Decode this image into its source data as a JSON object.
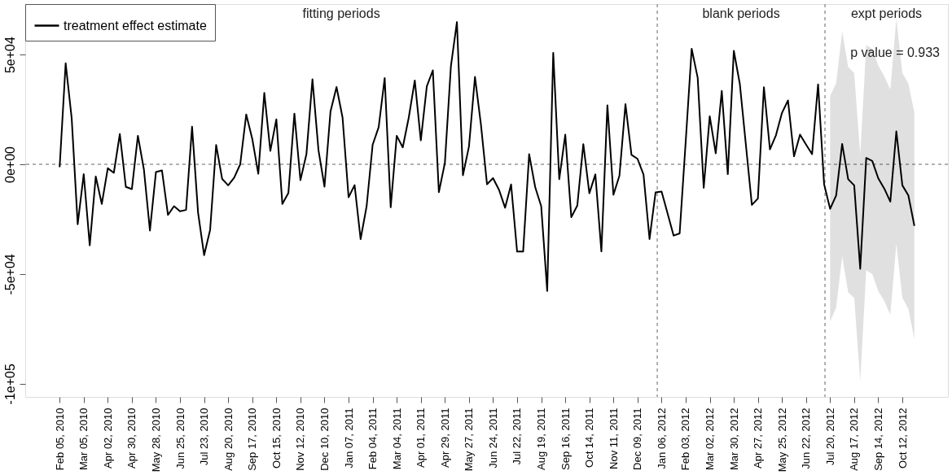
{
  "chart_data": {
    "type": "line",
    "x": [
      "2010-02-05",
      "2010-02-12",
      "2010-02-19",
      "2010-02-26",
      "2010-03-05",
      "2010-03-12",
      "2010-03-19",
      "2010-03-26",
      "2010-04-02",
      "2010-04-09",
      "2010-04-16",
      "2010-04-23",
      "2010-04-30",
      "2010-05-07",
      "2010-05-14",
      "2010-05-21",
      "2010-05-28",
      "2010-06-04",
      "2010-06-11",
      "2010-06-18",
      "2010-06-25",
      "2010-07-02",
      "2010-07-09",
      "2010-07-16",
      "2010-07-23",
      "2010-07-30",
      "2010-08-06",
      "2010-08-13",
      "2010-08-20",
      "2010-08-27",
      "2010-09-03",
      "2010-09-10",
      "2010-09-17",
      "2010-09-24",
      "2010-10-01",
      "2010-10-08",
      "2010-10-15",
      "2010-10-22",
      "2010-10-29",
      "2010-11-05",
      "2010-11-12",
      "2010-11-19",
      "2010-11-26",
      "2010-12-03",
      "2010-12-10",
      "2010-12-17",
      "2010-12-24",
      "2010-12-31",
      "2011-01-07",
      "2011-01-14",
      "2011-01-21",
      "2011-01-28",
      "2011-02-04",
      "2011-02-11",
      "2011-02-18",
      "2011-02-25",
      "2011-03-04",
      "2011-03-11",
      "2011-03-18",
      "2011-03-25",
      "2011-04-01",
      "2011-04-08",
      "2011-04-15",
      "2011-04-22",
      "2011-04-29",
      "2011-05-06",
      "2011-05-13",
      "2011-05-20",
      "2011-05-27",
      "2011-06-03",
      "2011-06-10",
      "2011-06-17",
      "2011-06-24",
      "2011-07-01",
      "2011-07-08",
      "2011-07-15",
      "2011-07-22",
      "2011-07-29",
      "2011-08-05",
      "2011-08-12",
      "2011-08-19",
      "2011-08-26",
      "2011-09-02",
      "2011-09-09",
      "2011-09-16",
      "2011-09-23",
      "2011-09-30",
      "2011-10-07",
      "2011-10-14",
      "2011-10-21",
      "2011-10-28",
      "2011-11-04",
      "2011-11-11",
      "2011-11-18",
      "2011-11-25",
      "2011-12-02",
      "2011-12-09",
      "2011-12-16",
      "2011-12-23",
      "2011-12-30",
      "2012-01-06",
      "2012-01-13",
      "2012-01-20",
      "2012-01-27",
      "2012-02-03",
      "2012-02-10",
      "2012-02-17",
      "2012-02-24",
      "2012-03-02",
      "2012-03-09",
      "2012-03-16",
      "2012-03-23",
      "2012-03-30",
      "2012-04-06",
      "2012-04-13",
      "2012-04-20",
      "2012-04-27",
      "2012-05-04",
      "2012-05-11",
      "2012-05-18",
      "2012-05-25",
      "2012-06-01",
      "2012-06-08",
      "2012-06-15",
      "2012-06-22",
      "2012-06-29",
      "2012-07-06",
      "2012-07-13",
      "2012-07-20",
      "2012-07-27",
      "2012-08-03",
      "2012-08-10",
      "2012-08-17",
      "2012-08-24",
      "2012-08-31",
      "2012-09-07",
      "2012-09-14",
      "2012-09-21",
      "2012-09-28",
      "2012-10-05",
      "2012-10-12",
      "2012-10-19",
      "2012-10-26"
    ],
    "series": [
      {
        "name": "treatment effect estimate",
        "color": "#000000",
        "values": [
          -1300,
          46000,
          21000,
          -27300,
          -4500,
          -36900,
          -5600,
          -18100,
          -1800,
          -3900,
          13800,
          -10300,
          -11300,
          13000,
          -2400,
          -30200,
          -3500,
          -2800,
          -23100,
          -19100,
          -21400,
          -20800,
          17100,
          -22100,
          -41400,
          -29900,
          8800,
          -6700,
          -9600,
          -6100,
          0,
          22700,
          11600,
          -4300,
          32500,
          6100,
          20500,
          -18100,
          -13100,
          23100,
          -7200,
          4600,
          38700,
          6400,
          -10200,
          24100,
          35200,
          21300,
          -15000,
          -9500,
          -34100,
          -19100,
          8900,
          16900,
          39300,
          -19600,
          13000,
          7700,
          21300,
          38200,
          10900,
          35500,
          42800,
          -12700,
          600,
          44700,
          64800,
          -5000,
          8100,
          39800,
          17800,
          -9100,
          -6300,
          -11700,
          -19800,
          -9200,
          -39800,
          -39800,
          4600,
          -10400,
          -19100,
          -57700,
          50800,
          -6800,
          13500,
          -24100,
          -18800,
          9200,
          -13200,
          -4600,
          -39700,
          26900,
          -13900,
          -5200,
          27400,
          4300,
          2500,
          -4700,
          -34100,
          -12800,
          -12400,
          -22400,
          -32500,
          -31500,
          10000,
          52600,
          39400,
          -10700,
          21900,
          5000,
          33400,
          -4500,
          51700,
          36600,
          9000,
          -18500,
          -15600,
          35100,
          6800,
          13200,
          23400,
          29100,
          3600,
          13500,
          9000,
          4600,
          36400,
          -9100,
          -20300,
          -14200,
          9300,
          -6800,
          -9600,
          -47600,
          2900,
          1500,
          -6400,
          -11100,
          -17000,
          15000,
          -9600,
          -14200,
          -28100
        ],
        "lower": [
          null,
          null,
          null,
          null,
          null,
          null,
          null,
          null,
          null,
          null,
          null,
          null,
          null,
          null,
          null,
          null,
          null,
          null,
          null,
          null,
          null,
          null,
          null,
          null,
          null,
          null,
          null,
          null,
          null,
          null,
          null,
          null,
          null,
          null,
          null,
          null,
          null,
          null,
          null,
          null,
          null,
          null,
          null,
          null,
          null,
          null,
          null,
          null,
          null,
          null,
          null,
          null,
          null,
          null,
          null,
          null,
          null,
          null,
          null,
          null,
          null,
          null,
          null,
          null,
          null,
          null,
          null,
          null,
          null,
          null,
          null,
          null,
          null,
          null,
          null,
          null,
          null,
          null,
          null,
          null,
          null,
          null,
          null,
          null,
          null,
          null,
          null,
          null,
          null,
          null,
          null,
          null,
          null,
          null,
          null,
          null,
          null,
          null,
          null,
          null,
          null,
          null,
          null,
          null,
          null,
          null,
          null,
          null,
          null,
          null,
          null,
          null,
          null,
          null,
          null,
          null,
          null,
          null,
          null,
          null,
          null,
          null,
          null,
          null,
          null,
          null,
          null,
          null,
          -71700,
          -65300,
          -41900,
          -58400,
          -60900,
          -98900,
          -48300,
          -50000,
          -57800,
          -62300,
          -68700,
          -36100,
          -60900,
          -65900,
          -79700
        ],
        "upper": [
          null,
          null,
          null,
          null,
          null,
          null,
          null,
          null,
          null,
          null,
          null,
          null,
          null,
          null,
          null,
          null,
          null,
          null,
          null,
          null,
          null,
          null,
          null,
          null,
          null,
          null,
          null,
          null,
          null,
          null,
          null,
          null,
          null,
          null,
          null,
          null,
          null,
          null,
          null,
          null,
          null,
          null,
          null,
          null,
          null,
          null,
          null,
          null,
          null,
          null,
          null,
          null,
          null,
          null,
          null,
          null,
          null,
          null,
          null,
          null,
          null,
          null,
          null,
          null,
          null,
          null,
          null,
          null,
          null,
          null,
          null,
          null,
          null,
          null,
          null,
          null,
          null,
          null,
          null,
          null,
          null,
          null,
          null,
          null,
          null,
          null,
          null,
          null,
          null,
          null,
          null,
          null,
          null,
          null,
          null,
          null,
          null,
          null,
          null,
          null,
          null,
          null,
          null,
          null,
          null,
          null,
          null,
          null,
          null,
          null,
          null,
          null,
          null,
          null,
          null,
          null,
          null,
          null,
          null,
          null,
          null,
          null,
          null,
          null,
          null,
          null,
          null,
          null,
          31200,
          37000,
          60600,
          44400,
          41600,
          4300,
          54300,
          52600,
          44900,
          40100,
          34100,
          66300,
          41600,
          36900,
          23500
        ]
      }
    ],
    "xlim": [
      "2009-12-27",
      "2012-12-04"
    ],
    "ylim": [
      -106000,
      73000
    ],
    "yticks": [
      {
        "value": -100000,
        "label": "-1e+05"
      },
      {
        "value": -50000,
        "label": "-5e+04"
      },
      {
        "value": 0,
        "label": "0e+00"
      },
      {
        "value": 50000,
        "label": "5e+04"
      }
    ],
    "xticks": [
      {
        "value": "2010-02-05",
        "label": "Feb 05, 2010"
      },
      {
        "value": "2010-03-05",
        "label": "Mar 05, 2010"
      },
      {
        "value": "2010-04-02",
        "label": "Apr 02, 2010"
      },
      {
        "value": "2010-04-30",
        "label": "Apr 30, 2010"
      },
      {
        "value": "2010-05-28",
        "label": "May 28, 2010"
      },
      {
        "value": "2010-06-25",
        "label": "Jun 25, 2010"
      },
      {
        "value": "2010-07-23",
        "label": "Jul 23, 2010"
      },
      {
        "value": "2010-08-20",
        "label": "Aug 20, 2010"
      },
      {
        "value": "2010-09-17",
        "label": "Sep 17, 2010"
      },
      {
        "value": "2010-10-15",
        "label": "Oct 15, 2010"
      },
      {
        "value": "2010-11-12",
        "label": "Nov 12, 2010"
      },
      {
        "value": "2010-12-10",
        "label": "Dec 10, 2010"
      },
      {
        "value": "2011-01-07",
        "label": "Jan 07, 2011"
      },
      {
        "value": "2011-02-04",
        "label": "Feb 04, 2011"
      },
      {
        "value": "2011-03-04",
        "label": "Mar 04, 2011"
      },
      {
        "value": "2011-04-01",
        "label": "Apr 01, 2011"
      },
      {
        "value": "2011-04-29",
        "label": "Apr 29, 2011"
      },
      {
        "value": "2011-05-27",
        "label": "May 27, 2011"
      },
      {
        "value": "2011-06-24",
        "label": "Jun 24, 2011"
      },
      {
        "value": "2011-07-22",
        "label": "Jul 22, 2011"
      },
      {
        "value": "2011-08-19",
        "label": "Aug 19, 2011"
      },
      {
        "value": "2011-09-16",
        "label": "Sep 16, 2011"
      },
      {
        "value": "2011-10-14",
        "label": "Oct 14, 2011"
      },
      {
        "value": "2011-11-11",
        "label": "Nov 11, 2011"
      },
      {
        "value": "2011-12-09",
        "label": "Dec 09, 2011"
      },
      {
        "value": "2012-01-06",
        "label": "Jan 06, 2012"
      },
      {
        "value": "2012-02-03",
        "label": "Feb 03, 2012"
      },
      {
        "value": "2012-03-02",
        "label": "Mar 02, 2012"
      },
      {
        "value": "2012-03-30",
        "label": "Mar 30, 2012"
      },
      {
        "value": "2012-04-27",
        "label": "Apr 27, 2012"
      },
      {
        "value": "2012-05-25",
        "label": "May 25, 2012"
      },
      {
        "value": "2012-06-22",
        "label": "Jun 22, 2012"
      },
      {
        "value": "2012-07-20",
        "label": "Jul 20, 2012"
      },
      {
        "value": "2012-08-17",
        "label": "Aug 17, 2012"
      },
      {
        "value": "2012-09-14",
        "label": "Sep 14, 2012"
      },
      {
        "value": "2012-10-12",
        "label": "Oct 12, 2012"
      }
    ],
    "ref_lines": [
      {
        "axis": "y",
        "value": 0,
        "color": "#999999",
        "line_style": "dashed"
      },
      {
        "axis": "x",
        "value": "2012-01-01",
        "color": "#999999",
        "line_style": "dashed"
      },
      {
        "axis": "x",
        "value": "2012-07-14",
        "color": "#999999",
        "line_style": "dashed"
      }
    ],
    "annotations": [
      "fitting periods",
      "blank periods",
      "expt periods",
      "p value = 0.933"
    ],
    "legend": "top left",
    "grid": false,
    "line_style": "solid",
    "marker": "none"
  }
}
